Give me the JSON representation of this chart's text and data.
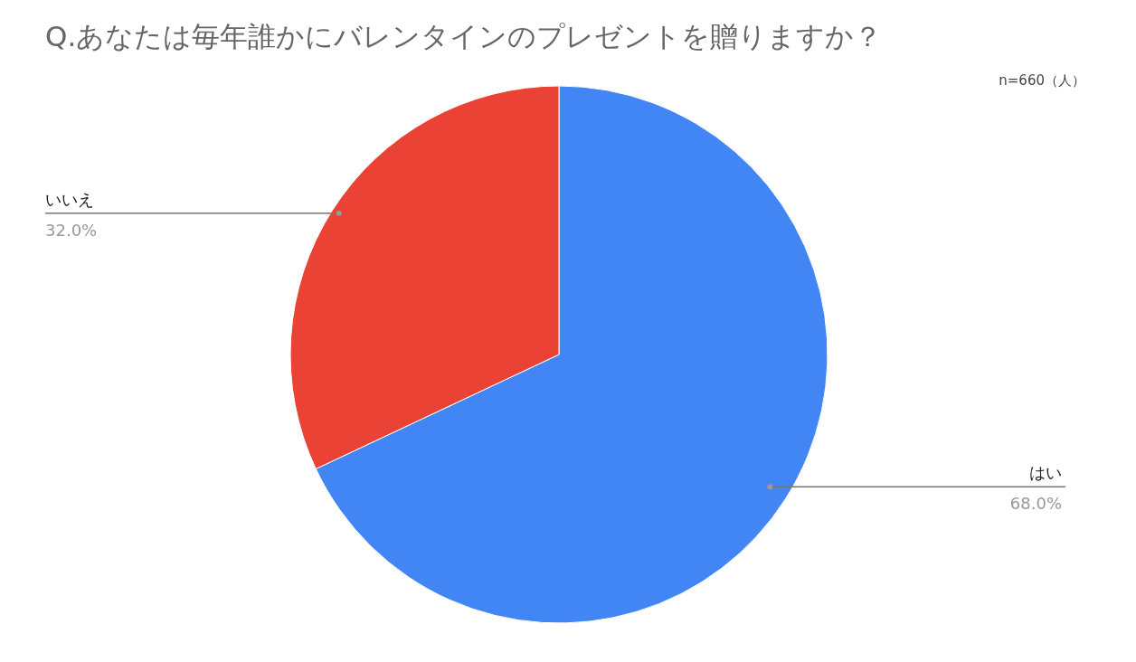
{
  "chart_data": {
    "type": "pie",
    "title": "Q.あなたは毎年誰かにバレンタインのプレゼントを贈りますか？",
    "annotations": [
      "n=660（人）"
    ],
    "categories": [
      "はい",
      "いいえ"
    ],
    "values": [
      68.0,
      32.0
    ],
    "colors": [
      "#4285f4",
      "#ea4335"
    ],
    "value_labels": [
      "68.0%",
      "32.0%"
    ],
    "legend": false
  }
}
